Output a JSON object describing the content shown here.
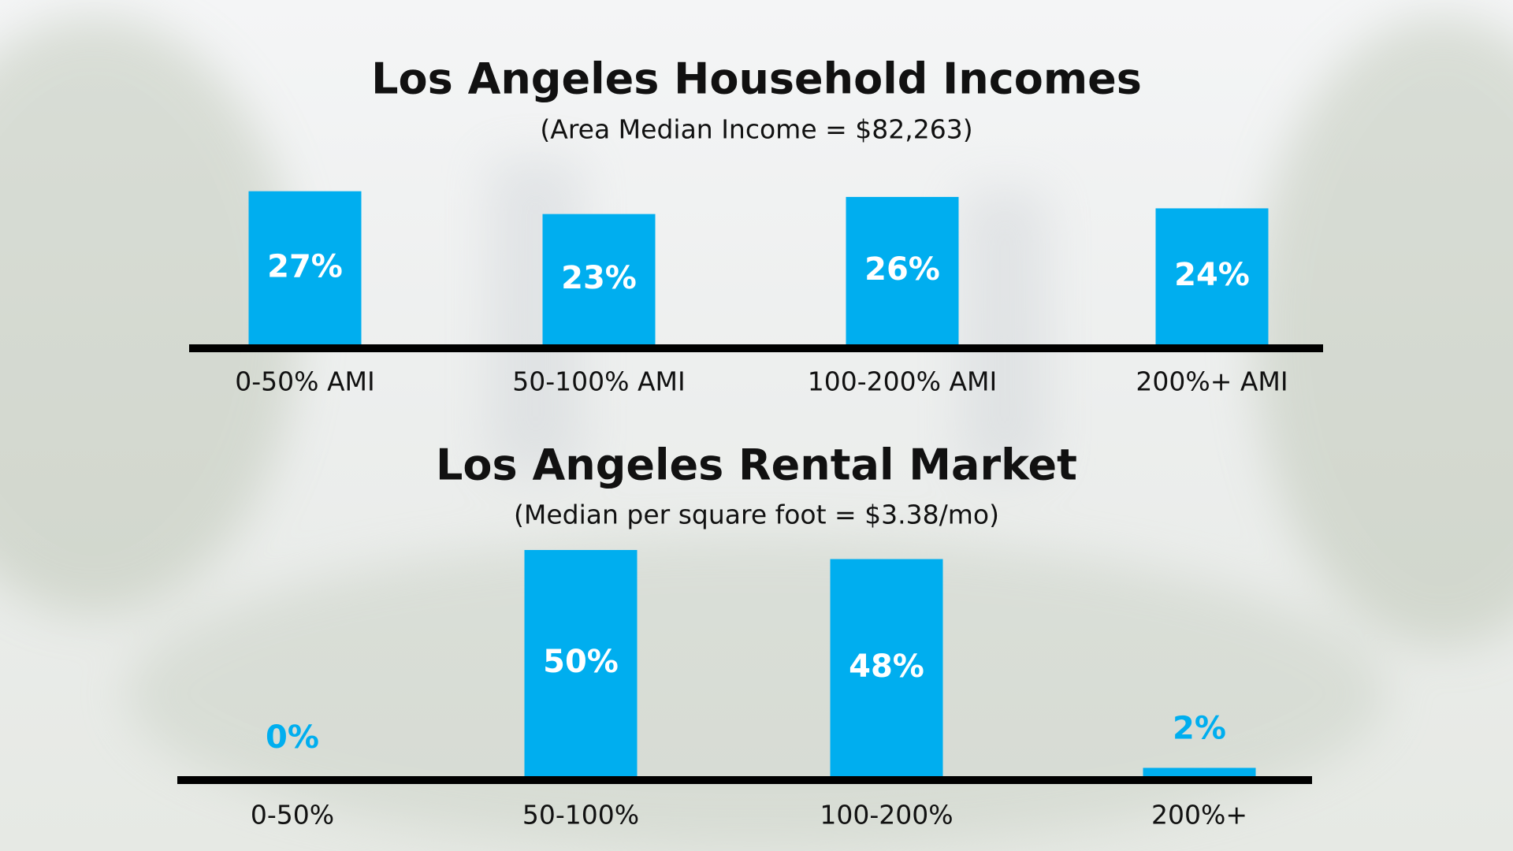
{
  "chart_data": [
    {
      "type": "bar",
      "title": "Los Angeles Household Incomes",
      "subtitle": "(Area Median Income = $82,263)",
      "categories": [
        "0-50% AMI",
        "50-100% AMI",
        "100-200% AMI",
        "200%+ AMI"
      ],
      "values": [
        27,
        23,
        26,
        24
      ],
      "value_labels": [
        "27%",
        "23%",
        "26%",
        "24%"
      ],
      "color": "#00aeef",
      "ylim": [
        0,
        30
      ]
    },
    {
      "type": "bar",
      "title": "Los Angeles Rental Market",
      "subtitle": "(Median per square foot = $3.38/mo)",
      "categories": [
        "0-50%",
        "50-100%",
        "100-200%",
        "200%+"
      ],
      "values": [
        0,
        50,
        48,
        2
      ],
      "value_labels": [
        "0%",
        "50%",
        "48%",
        "2%"
      ],
      "color": "#00aeef",
      "ylim": [
        0,
        50
      ]
    }
  ]
}
